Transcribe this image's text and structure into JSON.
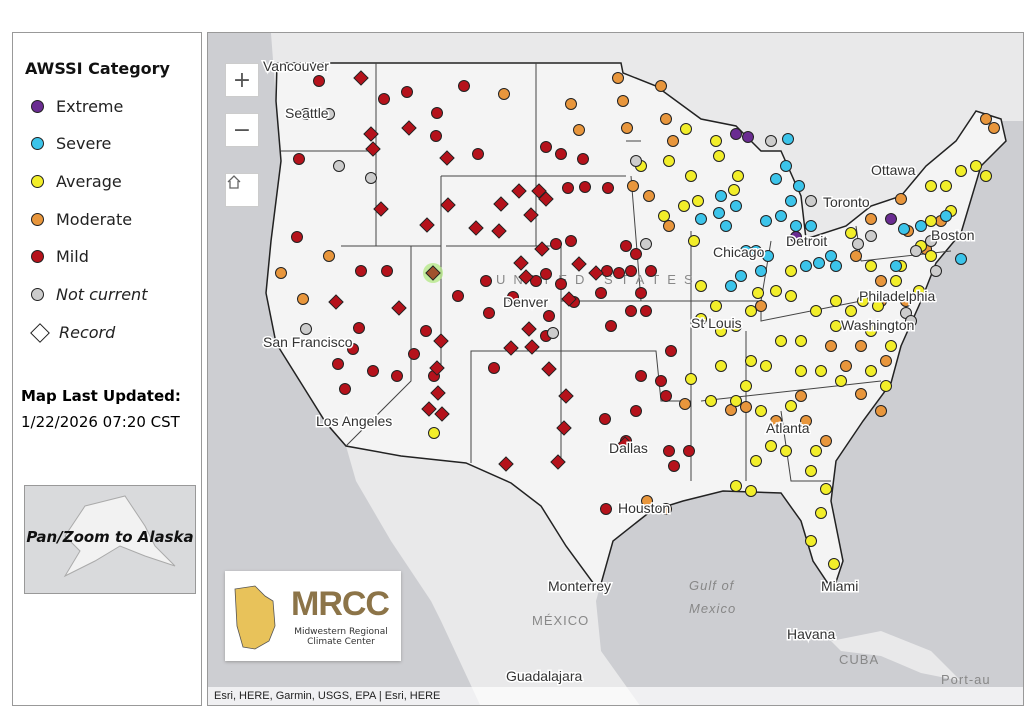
{
  "legend": {
    "title": "AWSSI Category",
    "items": [
      {
        "label": "Extreme",
        "color": "#6a2c91",
        "shape": "circle"
      },
      {
        "label": "Severe",
        "color": "#3cc4ea",
        "shape": "circle"
      },
      {
        "label": "Average",
        "color": "#f2ee2a",
        "shape": "circle"
      },
      {
        "label": "Moderate",
        "color": "#e8963c",
        "shape": "circle"
      },
      {
        "label": "Mild",
        "color": "#b5121b",
        "shape": "circle"
      },
      {
        "label": "Not current",
        "color": "#cccccc",
        "shape": "circle"
      },
      {
        "label": "Record",
        "color": "#ffffff",
        "shape": "diamond"
      }
    ],
    "updated_label": "Map Last Updated:",
    "updated_value": "1/22/2026 07:20 CST",
    "alaska_button": "Pan/Zoom to Alaska"
  },
  "map": {
    "zoom_in": "+",
    "zoom_out": "−",
    "home_icon": "home-icon",
    "logo_title": "MRCC",
    "logo_subtitle": "Midwestern Regional Climate Center",
    "attribution": "Esri, HERE, Garmin, USGS, EPA | Esri, HERE",
    "labels": {
      "vancouver": "Vancouver",
      "seattle": "Seattle",
      "sanfrancisco": "San Francisco",
      "losangeles": "Los Angeles",
      "denver": "Denver",
      "stlouis": "St Louis",
      "chicago": "Chicago",
      "detroit": "Detroit",
      "toronto": "Toronto",
      "ottawa": "Ottawa",
      "boston": "Boston",
      "philadelphia": "Philadelphia",
      "washington": "Washington",
      "atlanta": "Atlanta",
      "dallas": "Dallas",
      "houston": "Houston",
      "monterrey": "Monterrey",
      "mexico": "MÉXICO",
      "gulf1": "Gulf of",
      "gulf2": "Mexico",
      "miami": "Miami",
      "havana": "Havana",
      "cuba": "CUBA",
      "guadalajara": "Guadalajara",
      "us": "UNITED STATES",
      "portau": "Port-au"
    }
  }
}
